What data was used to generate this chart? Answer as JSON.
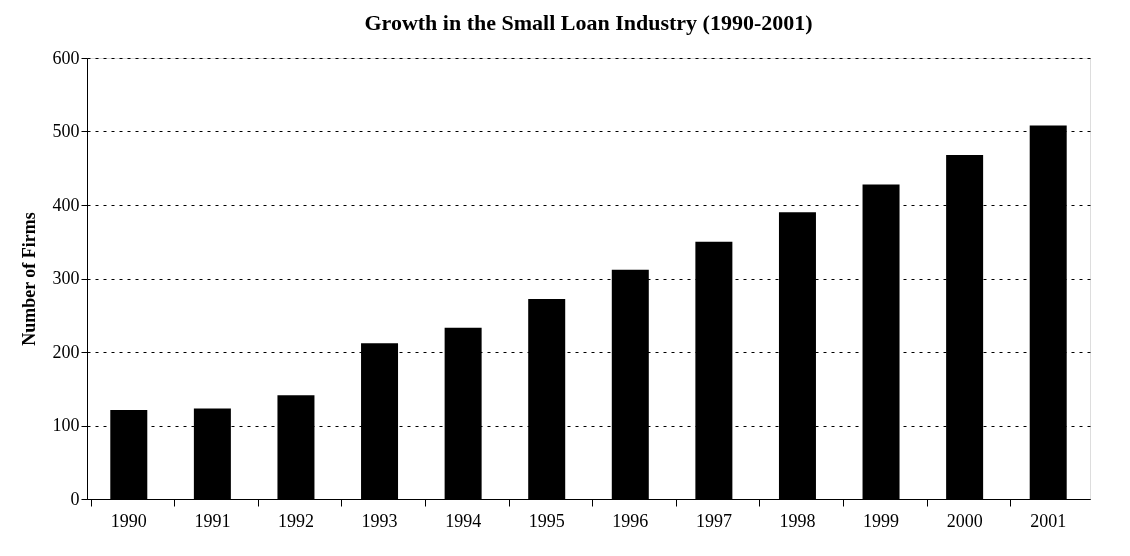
{
  "chart_data": {
    "type": "bar",
    "title": "Growth in the Small Loan Industry (1990-2001)",
    "ylabel": "Number of Firms",
    "categories": [
      "1990",
      "1991",
      "1992",
      "1993",
      "1994",
      "1995",
      "1996",
      "1997",
      "1998",
      "1999",
      "2000",
      "2001"
    ],
    "values": [
      121,
      123,
      141,
      212,
      233,
      272,
      312,
      350,
      390,
      428,
      468,
      508
    ],
    "color": "#000000",
    "ylim": [
      0,
      600
    ],
    "yticks": [
      0,
      100,
      200,
      300,
      400,
      500,
      600
    ],
    "grid": "y"
  }
}
